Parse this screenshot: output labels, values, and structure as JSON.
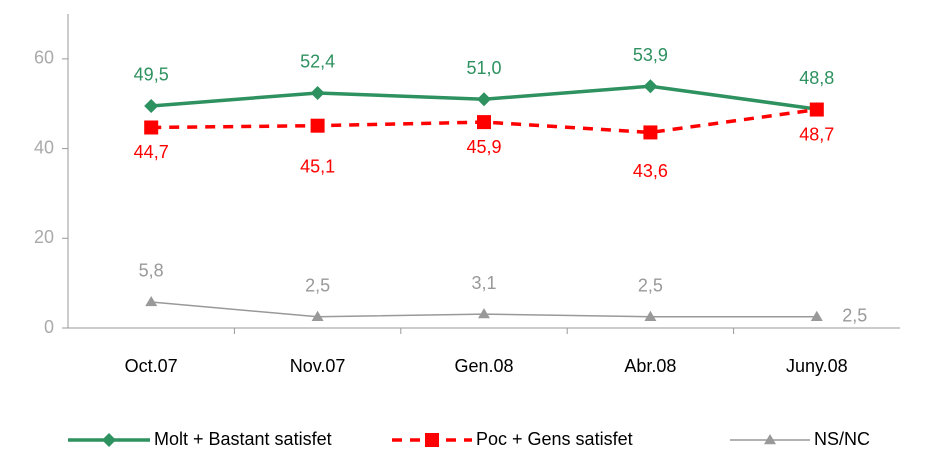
{
  "chart_data": {
    "type": "line",
    "categories": [
      "Oct.07",
      "Nov.07",
      "Gen.08",
      "Abr.08",
      "Juny.08"
    ],
    "series": [
      {
        "name": "Molt  + Bastant satisfet",
        "color": "#2e9160",
        "marker": "diamond",
        "dash": false,
        "values": [
          49.5,
          52.4,
          51.0,
          53.9,
          48.8
        ],
        "value_labels": [
          "49,5",
          "52,4",
          "51,0",
          "53,9",
          "48,8"
        ]
      },
      {
        "name": "Poc + Gens satisfet",
        "color": "#ff0000",
        "marker": "square",
        "dash": true,
        "values": [
          44.7,
          45.1,
          45.9,
          43.6,
          48.7
        ],
        "value_labels": [
          "44,7",
          "45,1",
          "45,9",
          "43,6",
          "48,7"
        ]
      },
      {
        "name": "NS/NC",
        "color": "#999999",
        "marker": "triangle",
        "dash": false,
        "values": [
          5.8,
          2.5,
          3.1,
          2.5,
          2.5
        ],
        "value_labels": [
          "5,8",
          "2,5",
          "3,1",
          "2,5",
          "2,5"
        ]
      }
    ],
    "ylim": [
      0,
      70
    ],
    "yticks": [
      0,
      20,
      40,
      60
    ],
    "legend": "bottom"
  }
}
